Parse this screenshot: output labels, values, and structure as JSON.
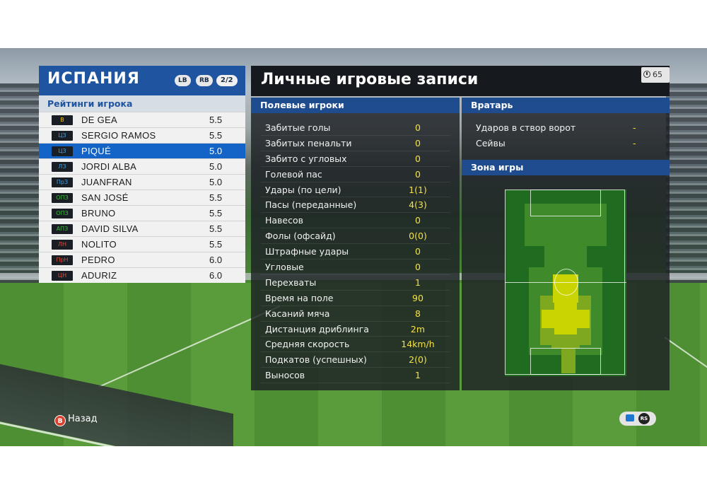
{
  "team": {
    "name": "ИСПАНИЯ",
    "lb_label": "LB",
    "rb_label": "RB",
    "page": "2/2"
  },
  "ratings_header": "Рейтинги игрока",
  "players": [
    {
      "pos": "В",
      "pos_color": "#f5c400",
      "name": "DE GEA",
      "rating": "5.5"
    },
    {
      "pos": "ЦЗ",
      "pos_color": "#3fa0e0",
      "name": "SERGIO RAMOS",
      "rating": "5.5"
    },
    {
      "pos": "ЦЗ",
      "pos_color": "#3fa0e0",
      "name": "PIQUÉ",
      "rating": "5.0"
    },
    {
      "pos": "ЛЗ",
      "pos_color": "#3fa0e0",
      "name": "JORDI ALBA",
      "rating": "5.0"
    },
    {
      "pos": "ПрЗ",
      "pos_color": "#3fa0e0",
      "name": "JUANFRAN",
      "rating": "5.0"
    },
    {
      "pos": "ОПЗ",
      "pos_color": "#3dbb3d",
      "name": "SAN JOSÉ",
      "rating": "5.5"
    },
    {
      "pos": "ОПЗ",
      "pos_color": "#3dbb3d",
      "name": "BRUNO",
      "rating": "5.5"
    },
    {
      "pos": "АПЗ",
      "pos_color": "#3dbb3d",
      "name": "DAVID SILVA",
      "rating": "5.5"
    },
    {
      "pos": "ЛН",
      "pos_color": "#e04a3a",
      "name": "NOLITO",
      "rating": "5.5"
    },
    {
      "pos": "ПрН",
      "pos_color": "#e04a3a",
      "name": "PEDRO",
      "rating": "6.0"
    },
    {
      "pos": "ЦН",
      "pos_color": "#e04a3a",
      "name": "ADURIZ",
      "rating": "6.0"
    }
  ],
  "selected_player_index": 2,
  "main": {
    "title": "Личные игровые записи",
    "timer": "65"
  },
  "field_players": {
    "header": "Полевые игроки",
    "stats": [
      {
        "label": "Забитые голы",
        "value": "0"
      },
      {
        "label": "Забитых пенальти",
        "value": "0"
      },
      {
        "label": "Забито с угловых",
        "value": "0"
      },
      {
        "label": "Голевой пас",
        "value": "0"
      },
      {
        "label": "Удары (по цели)",
        "value": "1(1)"
      },
      {
        "label": "Пасы (переданные)",
        "value": "4(3)"
      },
      {
        "label": "Навесов",
        "value": "0"
      },
      {
        "label": "Фолы (офсайд)",
        "value": "0(0)"
      },
      {
        "label": "Штрафные удары",
        "value": "0"
      },
      {
        "label": "Угловые",
        "value": "0"
      },
      {
        "label": "Перехваты",
        "value": "1"
      },
      {
        "label": "Время на поле",
        "value": "90"
      },
      {
        "label": "Касаний мяча",
        "value": "8"
      },
      {
        "label": "Дистанция дриблинга",
        "value": "2m"
      },
      {
        "label": "Средняя скорость",
        "value": "14km/h"
      },
      {
        "label": "Подкатов (успешных)",
        "value": "2(0)"
      },
      {
        "label": "Выносов",
        "value": "1"
      }
    ]
  },
  "goalkeeper": {
    "header": "Вратарь",
    "stats": [
      {
        "label": "Ударов в створ ворот",
        "value": "-"
      },
      {
        "label": "Сейвы",
        "value": "-"
      }
    ]
  },
  "zone": {
    "header": "Зона игры",
    "colors": {
      "low": "#1f6b1f",
      "mid": "#3f8a2a",
      "high": "#7da820",
      "peak": "#c9d400"
    }
  },
  "controls": {
    "back_icon": "B",
    "back_label": "Назад",
    "rs_label": "RS"
  }
}
